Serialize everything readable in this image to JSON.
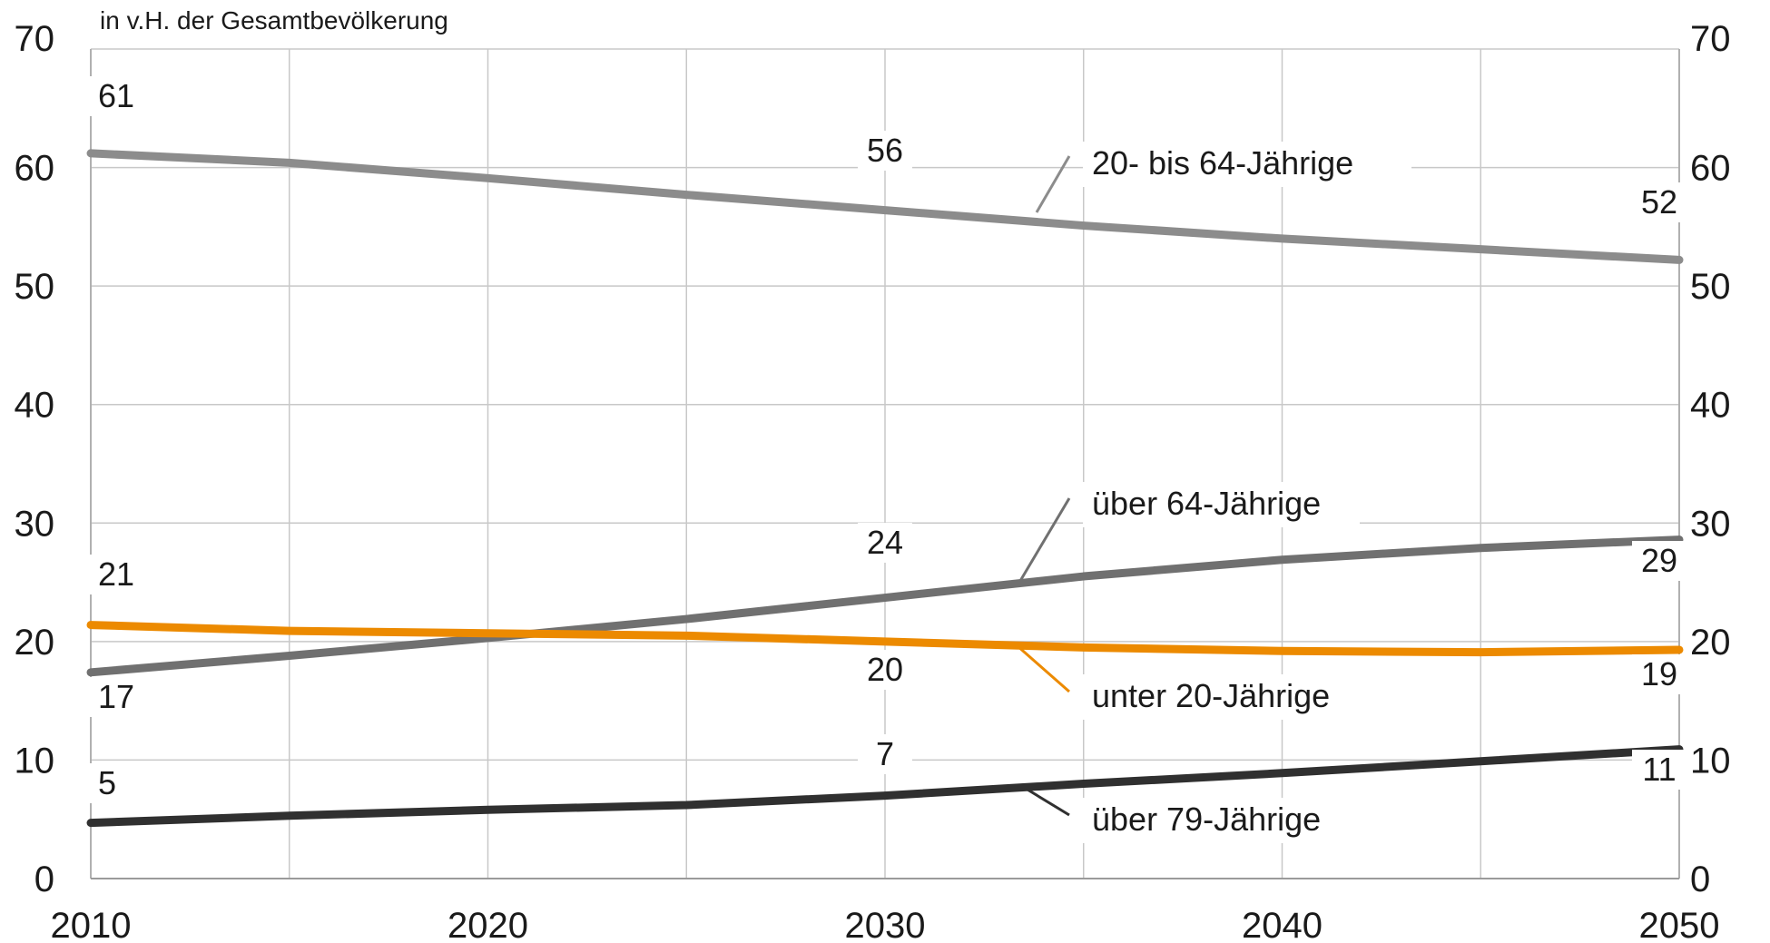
{
  "chart_data": {
    "type": "line",
    "unit_label": "in v.H. der Gesamtbevölkerung",
    "x": [
      2010,
      2015,
      2020,
      2025,
      2030,
      2035,
      2040,
      2045,
      2050
    ],
    "xticks": [
      2010,
      2020,
      2030,
      2040,
      2050
    ],
    "yticks": [
      0,
      10,
      20,
      30,
      40,
      50,
      60,
      70
    ],
    "xlim": [
      2010,
      2050
    ],
    "ylim": [
      0,
      70
    ],
    "grid": true,
    "series": [
      {
        "name": "20- bis 64-Jährige",
        "color": "#8c8c8c",
        "values": [
          61.2,
          60.4,
          59.1,
          57.7,
          56.4,
          55.1,
          54.0,
          53.1,
          52.2
        ],
        "data_labels": [
          {
            "x": 2010,
            "text": "61"
          },
          {
            "x": 2030,
            "text": "56"
          },
          {
            "x": 2050,
            "text": "52"
          }
        ]
      },
      {
        "name": "über 64-Jährige",
        "color": "#707070",
        "values": [
          17.4,
          18.8,
          20.3,
          21.9,
          23.7,
          25.5,
          26.9,
          27.9,
          28.6
        ],
        "data_labels": [
          {
            "x": 2010,
            "text": "17"
          },
          {
            "x": 2030,
            "text": "24"
          },
          {
            "x": 2050,
            "text": "29"
          }
        ]
      },
      {
        "name": "unter 20-Jährige",
        "color": "#ec8a00",
        "values": [
          21.4,
          20.9,
          20.7,
          20.5,
          20.0,
          19.5,
          19.2,
          19.1,
          19.3
        ],
        "data_labels": [
          {
            "x": 2010,
            "text": "21"
          },
          {
            "x": 2030,
            "text": "20"
          },
          {
            "x": 2050,
            "text": "19"
          }
        ]
      },
      {
        "name": "über 79-Jährige",
        "color": "#303030",
        "values": [
          4.7,
          5.3,
          5.8,
          6.2,
          7.0,
          8.0,
          8.9,
          9.9,
          10.9
        ],
        "data_labels": [
          {
            "x": 2010,
            "text": "5"
          },
          {
            "x": 2030,
            "text": "7"
          },
          {
            "x": 2050,
            "text": "11"
          }
        ]
      }
    ]
  }
}
